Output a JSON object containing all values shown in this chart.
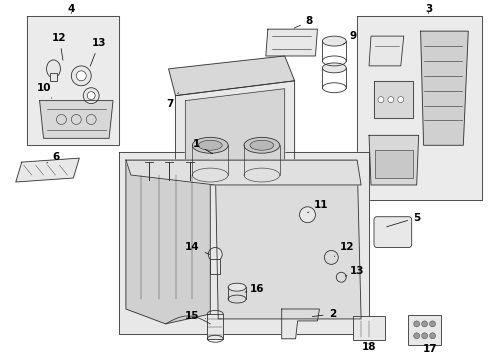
{
  "background_color": "#ffffff",
  "line_color": "#333333",
  "fill_light": "#e8e8e8",
  "fill_stipple": "#d8d8d8",
  "lw": 0.6
}
